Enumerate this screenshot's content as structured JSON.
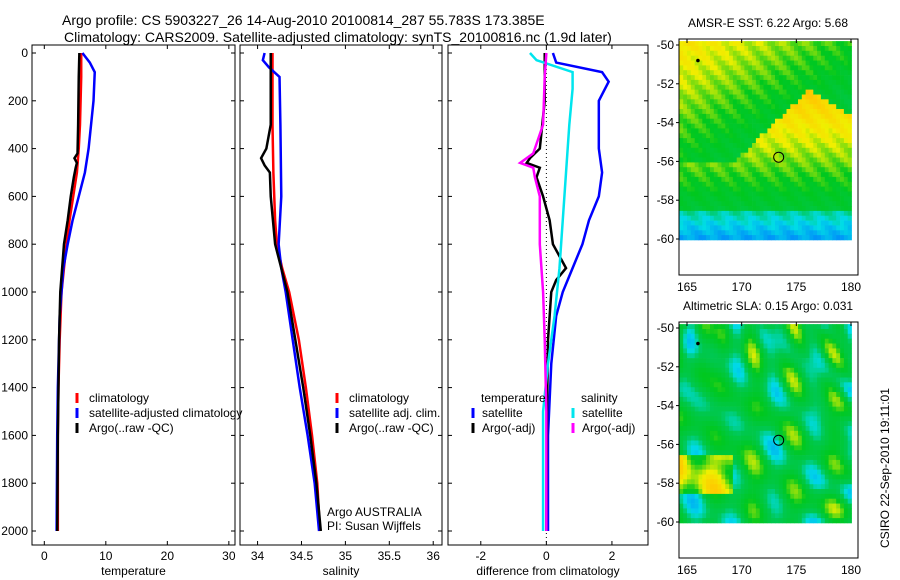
{
  "title": {
    "line1": "Argo profile: CS 5903227_26 14-Aug-2010 20100814_287 55.783S 173.385E",
    "line2": "Climatology: CARS2009. Satellite-adjusted climatology: synTS_20100816.nc (1.9d later)"
  },
  "stamp": "CSIRO 22-Sep-2010 19:11:01",
  "colors": {
    "climatology": "#ff0000",
    "satellite": "#0000ff",
    "argo": "#000000",
    "sal_sat": "#00e5ee",
    "sal_argo": "#ff00ff"
  },
  "chart_data": [
    {
      "type": "line",
      "name": "temperature",
      "xlabel": "temperature",
      "ylabel": "depth",
      "xlim": [
        -2,
        31
      ],
      "ylim": [
        2050,
        0
      ],
      "xticks": [
        "0",
        "10",
        "20",
        "30"
      ],
      "xtickvals": [
        0,
        10,
        20,
        30
      ],
      "yticks": [
        "0",
        "200",
        "400",
        "600",
        "800",
        "1000",
        "1200",
        "1400",
        "1600",
        "1800",
        "2000"
      ],
      "legend": [
        "climatology",
        "satellite-adjusted climatology",
        "Argo(..raw -QC)"
      ],
      "series": [
        {
          "name": "climatology",
          "color": "#ff0000",
          "depth": [
            0,
            100,
            300,
            400,
            500,
            600,
            700,
            800,
            1000,
            1200,
            1400,
            1600,
            2000
          ],
          "values": [
            6.0,
            6.0,
            5.8,
            5.6,
            5.3,
            4.7,
            4.1,
            3.6,
            2.8,
            2.5,
            2.3,
            2.2,
            2.2
          ]
        },
        {
          "name": "satellite-adjusted climatology",
          "color": "#0000ff",
          "depth": [
            0,
            40,
            80,
            200,
            300,
            400,
            500,
            600,
            700,
            800,
            900,
            1000,
            1100,
            1400,
            1600,
            2000
          ],
          "values": [
            6.2,
            7.4,
            8.2,
            8.0,
            7.6,
            7.2,
            6.6,
            5.6,
            4.6,
            3.8,
            3.1,
            2.8,
            2.5,
            2.2,
            2.1,
            2.0
          ]
        },
        {
          "name": "Argo(..raw -QC)",
          "color": "#000000",
          "depth": [
            0,
            100,
            300,
            420,
            440,
            460,
            480,
            520,
            600,
            700,
            800,
            900,
            1000,
            1200,
            1400,
            1600,
            2000
          ],
          "values": [
            5.7,
            5.6,
            5.5,
            5.4,
            4.9,
            5.3,
            5.1,
            4.8,
            4.3,
            3.8,
            3.2,
            2.9,
            2.6,
            2.4,
            2.3,
            2.2,
            2.1
          ]
        }
      ]
    },
    {
      "type": "line",
      "name": "salinity",
      "xlabel": "salinity",
      "ylabel": "depth",
      "xlim": [
        33.8,
        36.1
      ],
      "ylim": [
        2050,
        0
      ],
      "xticks": [
        "34",
        "34.5",
        "35",
        "35.5",
        "36"
      ],
      "xtickvals": [
        34,
        34.5,
        35,
        35.5,
        36
      ],
      "legend": [
        "climatology",
        "satellite adj. clim.",
        "Argo(..raw -QC)"
      ],
      "annotation": [
        "Argo AUSTRALIA",
        "PI: Susan Wijffels"
      ],
      "series": [
        {
          "name": "climatology",
          "color": "#ff0000",
          "depth": [
            0,
            100,
            300,
            500,
            700,
            800,
            900,
            1000,
            1200,
            1400,
            1600,
            1800,
            2000
          ],
          "values": [
            34.17,
            34.17,
            34.17,
            34.18,
            34.2,
            34.22,
            34.28,
            34.36,
            34.47,
            34.55,
            34.62,
            34.68,
            34.71
          ]
        },
        {
          "name": "satellite adj. clim.",
          "color": "#0000ff",
          "depth": [
            0,
            30,
            60,
            100,
            300,
            600,
            800,
            900,
            1000,
            1200,
            1400,
            1600,
            1800,
            2000
          ],
          "values": [
            34.08,
            34.06,
            34.13,
            34.25,
            34.26,
            34.27,
            34.24,
            34.27,
            34.32,
            34.4,
            34.48,
            34.57,
            34.65,
            34.7
          ]
        },
        {
          "name": "Argo(..raw -QC)",
          "color": "#000000",
          "depth": [
            0,
            100,
            300,
            400,
            440,
            470,
            500,
            600,
            800,
            900,
            1000,
            1200,
            1400,
            1600,
            1800,
            2000
          ],
          "values": [
            34.15,
            34.15,
            34.15,
            34.1,
            34.04,
            34.08,
            34.14,
            34.15,
            34.2,
            34.27,
            34.34,
            34.43,
            34.52,
            34.6,
            34.67,
            34.72
          ]
        }
      ]
    },
    {
      "type": "line",
      "name": "difference",
      "xlabel": "difference from climatology",
      "ylabel": "depth",
      "xlim": [
        -3,
        3.1
      ],
      "ylim": [
        2050,
        0
      ],
      "xticks": [
        "-2",
        "0",
        "2"
      ],
      "xtickvals": [
        -2,
        0,
        2
      ],
      "legend": {
        "temperature": [
          "temperature",
          "satellite",
          "Argo(-adj)"
        ],
        "salinity": [
          "salinity",
          "satellite",
          "Argo(-adj)"
        ]
      },
      "series": [
        {
          "name": "temperature satellite",
          "color": "#0000ff",
          "depth": [
            0,
            40,
            80,
            120,
            200,
            400,
            500,
            600,
            700,
            800,
            900,
            1000,
            1100,
            1300,
            1600,
            2000
          ],
          "values": [
            0.2,
            0.3,
            1.7,
            1.9,
            1.6,
            1.6,
            1.7,
            1.6,
            1.3,
            1.1,
            0.8,
            0.5,
            0.3,
            0.15,
            0.05,
            0.05
          ]
        },
        {
          "name": "temperature Argo(-adj)",
          "color": "#000000",
          "depth": [
            0,
            200,
            400,
            440,
            460,
            480,
            520,
            600,
            700,
            800,
            850,
            900,
            950,
            1000,
            1200,
            1500,
            2000
          ],
          "values": [
            -0.05,
            -0.05,
            -0.2,
            -0.5,
            -0.6,
            -0.2,
            -0.3,
            -0.1,
            0.1,
            0.2,
            0.4,
            0.6,
            0.3,
            0.15,
            0.05,
            0.02,
            0.0
          ]
        },
        {
          "name": "salinity satellite",
          "color": "#00e5ee",
          "depth": [
            0,
            30,
            80,
            150,
            300,
            500,
            700,
            900,
            1100,
            1300,
            1500,
            1800,
            2000
          ],
          "values": [
            -0.5,
            -0.3,
            0.8,
            0.8,
            0.7,
            0.6,
            0.5,
            0.4,
            0.25,
            0.05,
            -0.1,
            -0.1,
            -0.1
          ]
        },
        {
          "name": "salinity Argo(-adj)",
          "color": "#ff00ff",
          "depth": [
            0,
            100,
            300,
            420,
            460,
            480,
            520,
            600,
            800,
            1000,
            1200,
            1500,
            2000
          ],
          "values": [
            0.0,
            -0.05,
            -0.1,
            -0.4,
            -0.8,
            -0.4,
            -0.35,
            -0.2,
            -0.2,
            -0.1,
            -0.05,
            0.0,
            0.0
          ]
        }
      ]
    },
    {
      "type": "heatmap",
      "name": "sst-map",
      "title": "AMSR-E SST: 6.22 Argo: 5.68",
      "xticks": [
        "165",
        "170",
        "175",
        "180"
      ],
      "yticks": [
        "-50",
        "-52",
        "-54",
        "-56",
        "-58",
        "-60"
      ],
      "xlim": [
        164.3,
        180
      ],
      "ylim": [
        -60,
        -50
      ],
      "profile_location": [
        173.385,
        -55.783
      ]
    },
    {
      "type": "heatmap",
      "name": "sla-map",
      "title": "Altimetric SLA: 0.15 Argo: 0.031",
      "xticks": [
        "165",
        "170",
        "175",
        "180"
      ],
      "yticks": [
        "-50",
        "-52",
        "-54",
        "-56",
        "-58",
        "-60"
      ],
      "xlim": [
        164.3,
        180
      ],
      "ylim": [
        -60,
        -50
      ],
      "profile_location": [
        173.385,
        -55.783
      ]
    }
  ]
}
